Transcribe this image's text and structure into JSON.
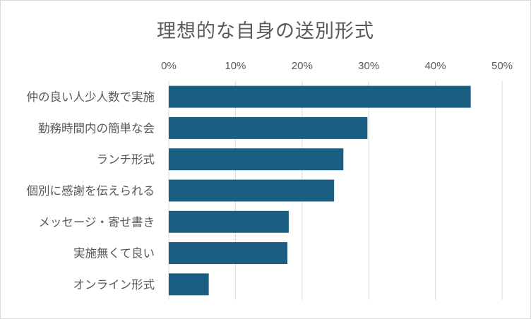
{
  "chart_data": {
    "type": "bar",
    "orientation": "horizontal",
    "title": "理想的な自身の送別形式",
    "categories": [
      "仲の良い人少人数で実施",
      "勤務時間内の簡単な会",
      "ランチ形式",
      "個別に感謝を伝えられる",
      "メッセージ・寄せ書き",
      "実施無くて良い",
      "オンライン形式"
    ],
    "values": [
      45.3,
      29.8,
      26.2,
      24.8,
      18.0,
      17.8,
      6.0
    ],
    "xlim": [
      0,
      50
    ],
    "ticks": [
      "0%",
      "10%",
      "20%",
      "30%",
      "40%",
      "50%"
    ],
    "tick_values": [
      0,
      10,
      20,
      30,
      40,
      50
    ],
    "axis_position": "top",
    "grid": true,
    "bar_color": "#1a5f82",
    "grid_color": "#d9d9d9"
  }
}
